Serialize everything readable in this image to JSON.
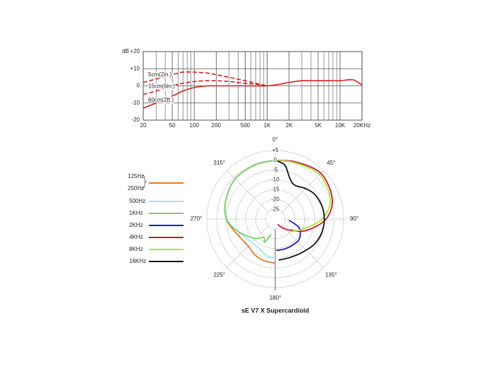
{
  "chart_data": [
    {
      "type": "line",
      "x_scale": "log",
      "grid": true,
      "y_label": "dB",
      "xlim": [
        20,
        20000
      ],
      "ylim": [
        -20,
        20
      ],
      "xticks": [
        20,
        50,
        100,
        200,
        500,
        {
          "value": 1000,
          "label": "1K"
        },
        {
          "value": 2000,
          "label": "2K"
        },
        {
          "value": 5000,
          "label": "5K"
        },
        {
          "value": 10000,
          "label": "10K"
        },
        {
          "value": 20000,
          "label": "20KHz"
        }
      ],
      "yticks": [
        {
          "value": 20,
          "label": "+20"
        },
        {
          "value": 10,
          "label": "+10"
        },
        0,
        -10,
        -20
      ],
      "series": [
        {
          "name": "5cm(2in.)",
          "color": "#d42020",
          "dash": true,
          "x": [
            20,
            30,
            50,
            70,
            100,
            150,
            200,
            300,
            500,
            700,
            1000
          ],
          "values": [
            2,
            4,
            6.5,
            8,
            8,
            7.5,
            6.5,
            5,
            3,
            1.5,
            0
          ]
        },
        {
          "name": "15cm(6in.)",
          "color": "#d42020",
          "dash": true,
          "x": [
            20,
            30,
            50,
            70,
            100,
            150,
            200,
            300,
            500,
            700,
            1000
          ],
          "values": [
            -5,
            -3,
            0,
            1.5,
            2.5,
            3,
            3,
            2.5,
            1.5,
            1,
            0
          ]
        },
        {
          "name": "60cm(2ft.)",
          "color": "#d42020",
          "dash": false,
          "x": [
            20,
            30,
            50,
            70,
            100,
            150,
            200,
            300,
            500,
            700,
            1000,
            1500,
            2000,
            3000,
            5000,
            7000,
            10000,
            15000,
            20000
          ],
          "values": [
            -13,
            -10,
            -6,
            -3,
            -1,
            0,
            0,
            0,
            0,
            0,
            0,
            1,
            2,
            3,
            3,
            3,
            3,
            3.5,
            0.5
          ]
        }
      ]
    },
    {
      "type": "polar",
      "title": "sE V7 X  Supercardioid",
      "rlim": [
        -30,
        5
      ],
      "rticks": [
        {
          "value": 5,
          "label": "+5"
        },
        0,
        -5,
        -10,
        -15,
        -20,
        -25
      ],
      "thetaticks": [
        {
          "value": 0,
          "label": "0°"
        },
        {
          "value": 45,
          "label": "45°"
        },
        {
          "value": 90,
          "label": "90°"
        },
        {
          "value": 135,
          "label": "135°"
        },
        {
          "value": 180,
          "label": "180°"
        },
        {
          "value": 225,
          "label": "225°"
        },
        {
          "value": 270,
          "label": "270°"
        },
        {
          "value": 315,
          "label": "315°"
        }
      ],
      "series": [
        {
          "names": [
            "125Hz",
            "250Hz"
          ],
          "color": "#e07b2a",
          "theta": [
            360,
            340,
            315,
            290,
            270,
            255,
            240,
            225,
            210,
            195,
            180
          ],
          "values": [
            0,
            -0.5,
            -1,
            -3,
            -5,
            -8,
            -10,
            -10.5,
            -9,
            -8,
            -7.5
          ]
        },
        {
          "name": "500Hz",
          "color": "#9ee9e2",
          "theta": [
            360,
            340,
            315,
            290,
            270,
            255,
            240,
            225,
            210,
            195,
            180
          ],
          "values": [
            0,
            -0.5,
            -1,
            -3,
            -5.5,
            -9,
            -12,
            -13,
            -13,
            -11,
            -10
          ]
        },
        {
          "name": "1KHz",
          "color": "#7ccf6a",
          "theta": [
            360,
            340,
            315,
            290,
            270,
            255,
            240,
            225,
            212,
            205,
            195
          ],
          "values": [
            0,
            -0.5,
            -1,
            -3,
            -5,
            -9,
            -13,
            -16,
            -19,
            -17,
            -22
          ]
        },
        {
          "name": "2KHz",
          "color": "#1a1acc",
          "theta": [
            95,
            110,
            130,
            150,
            165,
            178
          ],
          "values": [
            -23,
            -17,
            -14,
            -14,
            -14,
            -14
          ]
        },
        {
          "name": "4KHz",
          "color": "#cc1a2a",
          "theta": [
            0,
            20,
            45,
            70,
            90,
            110,
            125,
            140,
            155
          ],
          "values": [
            0,
            1,
            3,
            1,
            -4,
            -13,
            -20,
            -24,
            -27
          ]
        },
        {
          "name": "8KHz",
          "color": "#a8e83a",
          "theta": [
            0,
            20,
            45,
            70,
            90,
            110,
            130
          ],
          "values": [
            0,
            0.5,
            2,
            0,
            -6,
            -15,
            -20
          ]
        },
        {
          "name": "16KHz",
          "color": "#111111",
          "theta": [
            0,
            10,
            20,
            30,
            45,
            60,
            80,
            100,
            120,
            140,
            160,
            175
          ],
          "values": [
            0,
            -2,
            -8,
            -10,
            -8,
            -6,
            -5,
            -5,
            -6,
            -8,
            -9,
            -9
          ]
        }
      ]
    }
  ]
}
